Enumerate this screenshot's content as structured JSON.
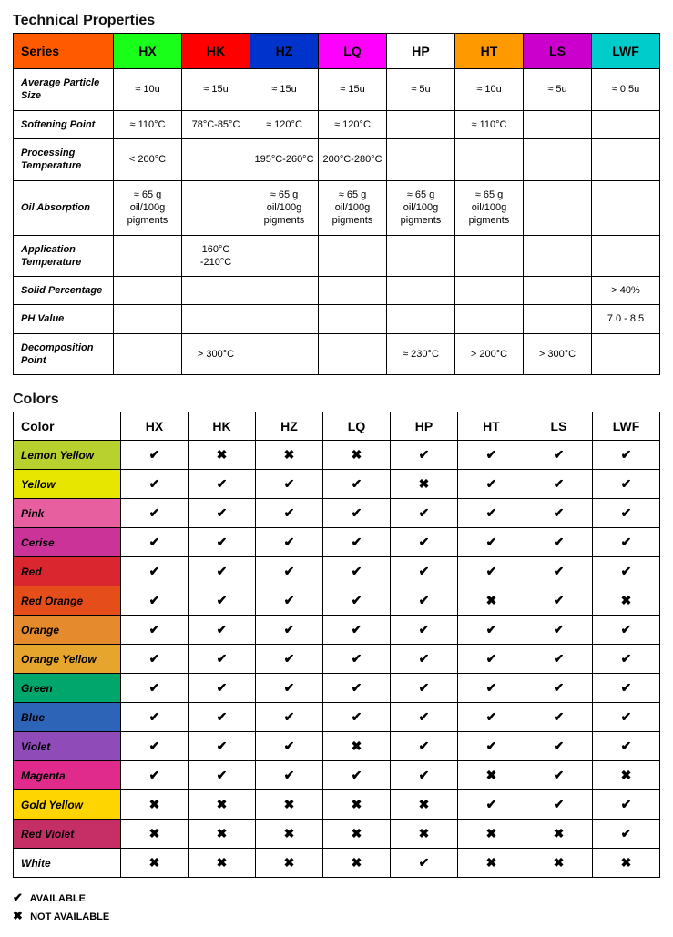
{
  "tech": {
    "title": "Technical Properties",
    "header_label": "Series",
    "header_bg": "#ff5a00",
    "columns": [
      {
        "label": "HX",
        "bg": "#1aff1a"
      },
      {
        "label": "HK",
        "bg": "#ff0000"
      },
      {
        "label": "HZ",
        "bg": "#0033cc"
      },
      {
        "label": "LQ",
        "bg": "#ff00ff"
      },
      {
        "label": "HP",
        "bg": "#ffffff"
      },
      {
        "label": "HT",
        "bg": "#ff9900"
      },
      {
        "label": "LS",
        "bg": "#cc00cc"
      },
      {
        "label": "LWF",
        "bg": "#00cccc"
      }
    ],
    "rows": [
      {
        "label": "Average Particle Size",
        "cells": [
          "≈ 10u",
          "≈ 15u",
          "≈ 15u",
          "≈ 15u",
          "≈ 5u",
          "≈ 10u",
          "≈ 5u",
          "≈ 0,5u"
        ]
      },
      {
        "label": "Softening Point",
        "cells": [
          "≈ 110°C",
          "78°C-85°C",
          "≈ 120°C",
          "≈ 120°C",
          "",
          "≈ 110°C",
          "",
          ""
        ]
      },
      {
        "label": "Processing Temperature",
        "cells": [
          "< 200°C",
          "",
          "195°C-260°C",
          "200°C-280°C",
          "",
          "",
          "",
          ""
        ]
      },
      {
        "label": "Oil Absorption",
        "cells": [
          "≈ 65 g oil/100g pigments",
          "",
          "≈ 65 g oil/100g pigments",
          "≈ 65 g oil/100g pigments",
          "≈ 65 g oil/100g pigments",
          "≈ 65 g oil/100g pigments",
          "",
          ""
        ]
      },
      {
        "label": "Application Temperature",
        "cells": [
          "",
          "160°C -210°C",
          "",
          "",
          "",
          "",
          "",
          ""
        ]
      },
      {
        "label": "Solid Percentage",
        "cells": [
          "",
          "",
          "",
          "",
          "",
          "",
          "",
          "> 40%"
        ]
      },
      {
        "label": "PH Value",
        "cells": [
          "",
          "",
          "",
          "",
          "",
          "",
          "",
          "7.0 - 8.5"
        ]
      },
      {
        "label": "Decomposition Point",
        "cells": [
          "",
          "> 300°C",
          "",
          "",
          "≈ 230°C",
          "> 200°C",
          "> 300°C",
          ""
        ]
      }
    ]
  },
  "colors": {
    "title": "Colors",
    "header_label": "Color",
    "columns": [
      "HX",
      "HK",
      "HZ",
      "LQ",
      "HP",
      "HT",
      "LS",
      "LWF"
    ],
    "rows": [
      {
        "label": "Lemon Yellow",
        "bg": "#b8d12f",
        "cells": [
          1,
          0,
          0,
          0,
          1,
          1,
          1,
          1
        ]
      },
      {
        "label": "Yellow",
        "bg": "#e6e600",
        "cells": [
          1,
          1,
          1,
          1,
          0,
          1,
          1,
          1
        ]
      },
      {
        "label": "Pink",
        "bg": "#e85fa0",
        "cells": [
          1,
          1,
          1,
          1,
          1,
          1,
          1,
          1
        ]
      },
      {
        "label": "Cerise",
        "bg": "#cc3399",
        "cells": [
          1,
          1,
          1,
          1,
          1,
          1,
          1,
          1
        ]
      },
      {
        "label": "Red",
        "bg": "#d9262f",
        "cells": [
          1,
          1,
          1,
          1,
          1,
          1,
          1,
          1
        ]
      },
      {
        "label": "Red Orange",
        "bg": "#e54e1b",
        "cells": [
          1,
          1,
          1,
          1,
          1,
          0,
          1,
          0
        ]
      },
      {
        "label": "Orange",
        "bg": "#e68a2e",
        "cells": [
          1,
          1,
          1,
          1,
          1,
          1,
          1,
          1
        ]
      },
      {
        "label": "Orange Yellow",
        "bg": "#e6a62e",
        "cells": [
          1,
          1,
          1,
          1,
          1,
          1,
          1,
          1
        ]
      },
      {
        "label": "Green",
        "bg": "#00a66b",
        "cells": [
          1,
          1,
          1,
          1,
          1,
          1,
          1,
          1
        ]
      },
      {
        "label": "Blue",
        "bg": "#2e64b8",
        "cells": [
          1,
          1,
          1,
          1,
          1,
          1,
          1,
          1
        ]
      },
      {
        "label": "Violet",
        "bg": "#8f4bb8",
        "cells": [
          1,
          1,
          1,
          0,
          1,
          1,
          1,
          1
        ]
      },
      {
        "label": "Magenta",
        "bg": "#e02a8c",
        "cells": [
          1,
          1,
          1,
          1,
          1,
          0,
          1,
          0
        ]
      },
      {
        "label": "Gold Yellow",
        "bg": "#ffd500",
        "cells": [
          0,
          0,
          0,
          0,
          0,
          1,
          1,
          1
        ]
      },
      {
        "label": "Red Violet",
        "bg": "#c62f66",
        "cells": [
          0,
          0,
          0,
          0,
          0,
          0,
          0,
          1
        ]
      },
      {
        "label": "White",
        "bg": "#ffffff",
        "cells": [
          0,
          0,
          0,
          0,
          1,
          0,
          0,
          0
        ]
      }
    ]
  },
  "marks": {
    "yes": "✔",
    "no": "✖"
  },
  "legend": {
    "available": "AVAILABLE",
    "not_available": "NOT AVAILABLE"
  }
}
